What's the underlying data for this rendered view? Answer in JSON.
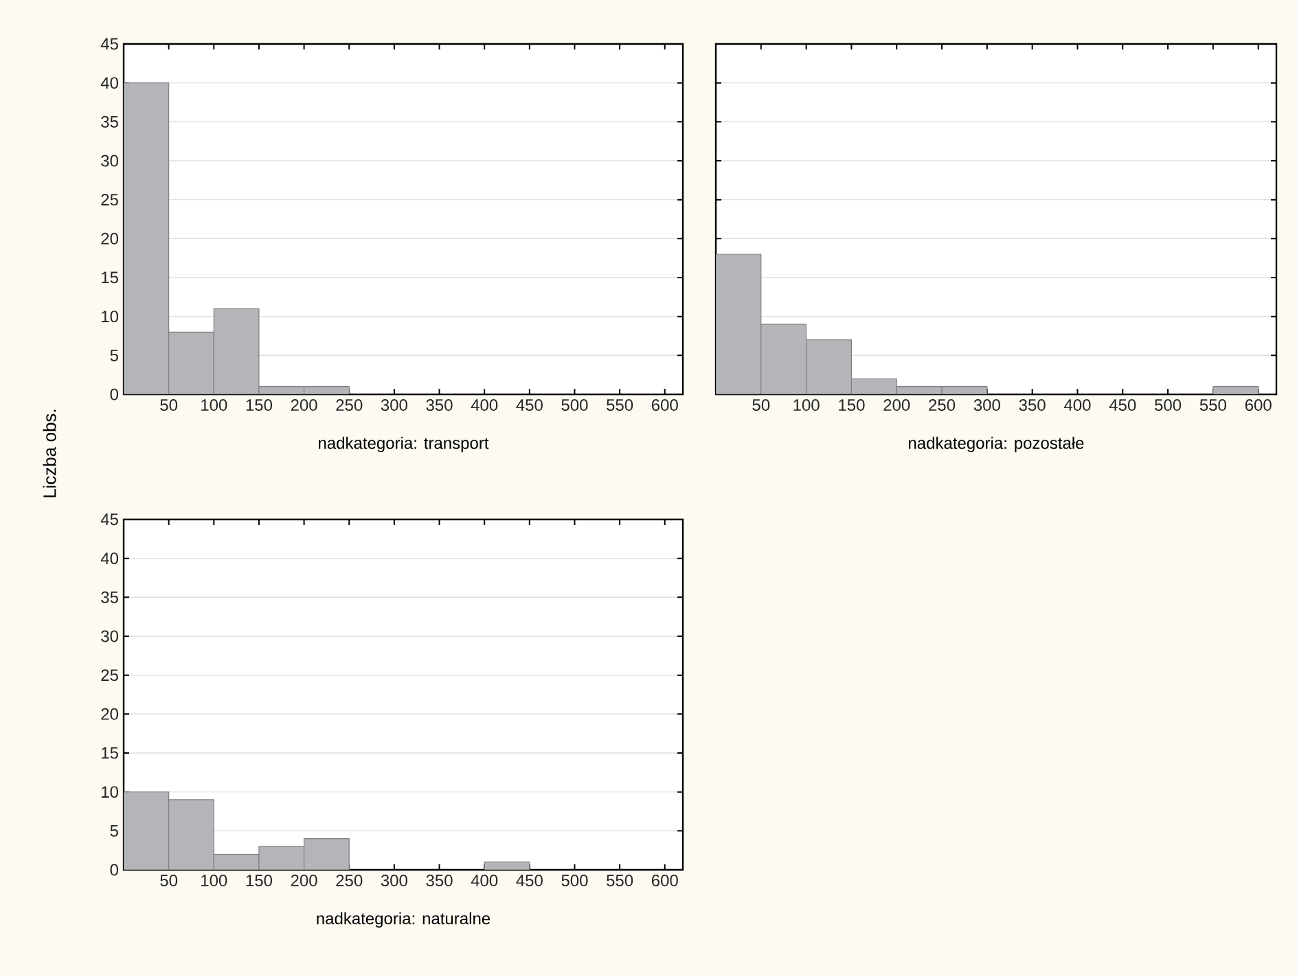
{
  "chart_data": [
    {
      "type": "histogram",
      "xlabel": "nadkategoria: transport",
      "ylabel": "Liczba obs.",
      "bins": [
        0,
        50,
        100,
        150,
        200,
        250,
        300,
        350,
        400,
        450,
        500,
        550,
        600
      ],
      "values": [
        40,
        8,
        11,
        1,
        1,
        0,
        0,
        0,
        0,
        0,
        0,
        0
      ],
      "color": "#b4b5b9",
      "xlim": [
        0,
        620
      ],
      "xticks": [
        50,
        100,
        150,
        200,
        250,
        300,
        350,
        400,
        450,
        500,
        550,
        600
      ],
      "ylim": [
        0,
        45
      ],
      "yticks": [
        0,
        5,
        10,
        15,
        20,
        25,
        30,
        35,
        40,
        45
      ],
      "grid": "y"
    },
    {
      "type": "histogram",
      "xlabel": "nadkategoria: pozostałe",
      "bins": [
        0,
        50,
        100,
        150,
        200,
        250,
        300,
        350,
        400,
        450,
        500,
        550,
        600
      ],
      "values": [
        18,
        9,
        7,
        2,
        1,
        1,
        0,
        0,
        0,
        0,
        0,
        1
      ],
      "color": "#b4b5b9",
      "xlim": [
        0,
        620
      ],
      "xticks": [
        50,
        100,
        150,
        200,
        250,
        300,
        350,
        400,
        450,
        500,
        550,
        600
      ],
      "ylim": [
        0,
        45
      ],
      "yticks": [
        0,
        5,
        10,
        15,
        20,
        25,
        30,
        35,
        40,
        45
      ],
      "grid": "y",
      "tick_labels": "x"
    },
    {
      "type": "histogram",
      "xlabel": "nadkategoria: naturalne",
      "bins": [
        0,
        50,
        100,
        150,
        200,
        250,
        300,
        350,
        400,
        450,
        500,
        550,
        600
      ],
      "values": [
        10,
        9,
        2,
        3,
        4,
        0,
        0,
        0,
        1,
        0,
        0,
        0
      ],
      "color": "#b4b5b9",
      "xlim": [
        0,
        620
      ],
      "xticks": [
        50,
        100,
        150,
        200,
        250,
        300,
        350,
        400,
        450,
        500,
        550,
        600
      ],
      "ylim": [
        0,
        45
      ],
      "yticks": [
        0,
        5,
        10,
        15,
        20,
        25,
        30,
        35,
        40,
        45
      ],
      "grid": "y"
    }
  ]
}
